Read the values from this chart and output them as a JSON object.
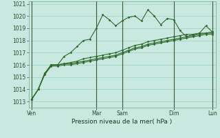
{
  "background_color": "#c8e8e0",
  "grid_color": "#a8d8cc",
  "line_color": "#2d6a2d",
  "title": "Pression niveau de la mer( hPa )",
  "ylim": [
    1012.5,
    1021.2
  ],
  "yticks": [
    1013,
    1014,
    1015,
    1016,
    1017,
    1018,
    1019,
    1020,
    1021
  ],
  "day_labels": [
    "Ven",
    "Mar",
    "Sam",
    "Dim",
    "Lun"
  ],
  "day_positions": [
    0,
    10,
    14,
    22,
    28
  ],
  "series": [
    [
      1013.2,
      1014.0,
      1015.3,
      1016.0,
      1016.0,
      1016.7,
      1017.0,
      1017.5,
      1018.0,
      1018.1,
      1019.0,
      1020.1,
      1019.7,
      1019.2,
      1019.6,
      1019.9,
      1020.0,
      1019.6,
      1020.5,
      1020.0,
      1019.3,
      1019.8,
      1019.7,
      1018.8,
      1018.3,
      1018.5,
      1018.6,
      1019.2,
      1018.7
    ],
    [
      1013.2,
      1014.0,
      1015.3,
      1016.0,
      1016.0,
      1016.1,
      1016.2,
      1016.3,
      1016.5,
      1016.6,
      1016.7,
      1016.8,
      1016.9,
      1017.0,
      1017.2,
      1017.4,
      1017.6,
      1017.7,
      1017.9,
      1018.0,
      1018.1,
      1018.2,
      1018.3,
      1018.4,
      1018.5,
      1018.5,
      1018.6,
      1018.6,
      1018.7
    ],
    [
      1013.2,
      1014.0,
      1015.3,
      1016.0,
      1016.0,
      1016.1,
      1016.1,
      1016.2,
      1016.3,
      1016.4,
      1016.5,
      1016.6,
      1016.7,
      1016.8,
      1017.0,
      1017.2,
      1017.4,
      1017.5,
      1017.7,
      1017.8,
      1017.9,
      1018.0,
      1018.1,
      1018.2,
      1018.3,
      1018.4,
      1018.5,
      1018.6,
      1018.6
    ],
    [
      1013.2,
      1014.0,
      1015.2,
      1015.9,
      1015.9,
      1016.0,
      1016.0,
      1016.1,
      1016.2,
      1016.3,
      1016.4,
      1016.5,
      1016.6,
      1016.7,
      1016.9,
      1017.1,
      1017.3,
      1017.4,
      1017.6,
      1017.7,
      1017.8,
      1017.9,
      1018.0,
      1018.1,
      1018.2,
      1018.3,
      1018.4,
      1018.5,
      1018.5
    ]
  ]
}
